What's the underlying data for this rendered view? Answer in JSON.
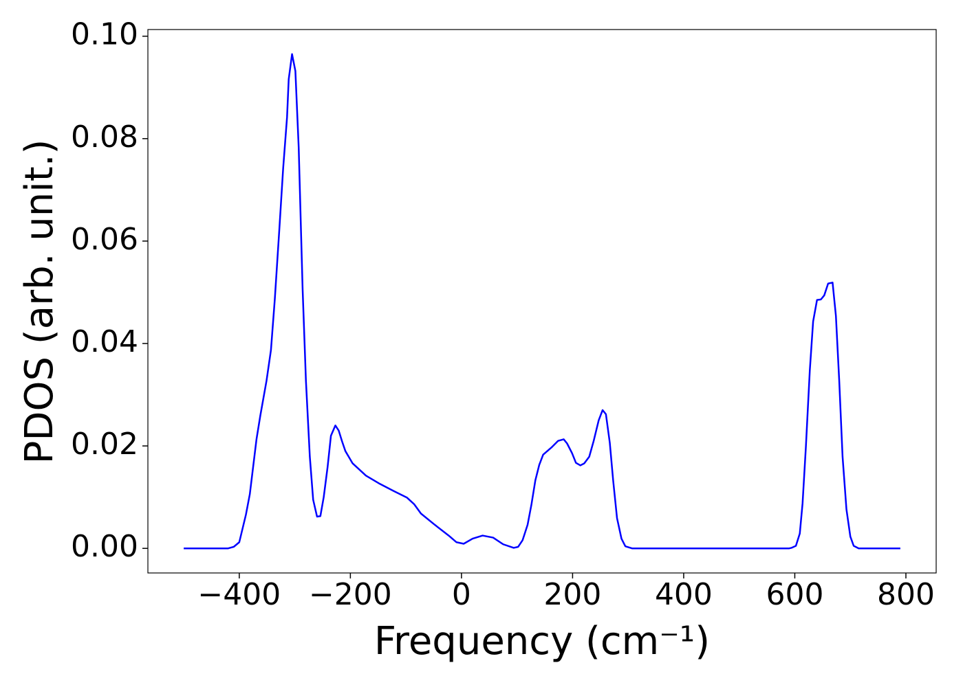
{
  "chart_data": {
    "type": "line",
    "xlabel": "Frequency (cm⁻¹)",
    "ylabel": "PDOS (arb. unit.)",
    "xlim": [
      -564.5,
      854.5
    ],
    "ylim": [
      -0.0048,
      0.1013
    ],
    "xticks": [
      {
        "value": -400,
        "label": "−400"
      },
      {
        "value": -200,
        "label": "−200"
      },
      0,
      200,
      400,
      600,
      800
    ],
    "yticks": [
      {
        "value": 0,
        "label": "0.00"
      },
      {
        "value": 0.02,
        "label": "0.02"
      },
      {
        "value": 0.04,
        "label": "0.04"
      },
      {
        "value": 0.06,
        "label": "0.06"
      },
      {
        "value": 0.08,
        "label": "0.08"
      },
      {
        "value": 0.1,
        "label": "0.10"
      }
    ],
    "series": [
      {
        "color": "#0000ff",
        "x": [
          -500,
          -420,
          -410,
          -400,
          -388,
          -381,
          -369,
          -362,
          -351,
          -343,
          -336,
          -328,
          -321,
          -314,
          -311,
          -305,
          -299,
          -293,
          -286,
          -280,
          -273,
          -267,
          -260,
          -254,
          -248,
          -241,
          -235,
          -227,
          -221,
          -215,
          -209,
          -196,
          -172,
          -147,
          -122,
          -98,
          -85,
          -73,
          -48,
          -23,
          -9,
          4,
          20,
          38,
          57,
          75,
          94,
          102,
          110,
          119,
          126,
          133,
          140,
          147,
          162,
          174,
          184,
          190,
          199,
          206,
          214,
          221,
          230,
          238,
          247,
          254,
          260,
          267,
          273,
          280,
          288,
          295,
          307,
          590,
          594,
          602,
          609,
          614,
          620,
          627,
          633,
          640,
          647,
          653,
          660,
          668,
          674,
          680,
          686,
          693,
          700,
          706,
          715,
          790
        ],
        "values": [
          0,
          0,
          0.0003,
          0.0012,
          0.0066,
          0.0106,
          0.0213,
          0.026,
          0.0327,
          0.0387,
          0.0487,
          0.0621,
          0.0742,
          0.0842,
          0.0916,
          0.0965,
          0.0932,
          0.0782,
          0.0507,
          0.0327,
          0.0179,
          0.0095,
          0.0062,
          0.0063,
          0.01,
          0.0159,
          0.022,
          0.024,
          0.023,
          0.0209,
          0.019,
          0.0166,
          0.0142,
          0.0126,
          0.0112,
          0.0099,
          0.0086,
          0.0068,
          0.0046,
          0.0025,
          0.0012,
          0.0009,
          0.0019,
          0.0025,
          0.0021,
          0.0008,
          0.0001,
          0.0003,
          0.0016,
          0.0046,
          0.0086,
          0.0133,
          0.0163,
          0.0183,
          0.0197,
          0.021,
          0.0213,
          0.0205,
          0.0186,
          0.0167,
          0.0162,
          0.0166,
          0.0179,
          0.021,
          0.025,
          0.027,
          0.0262,
          0.0206,
          0.0133,
          0.0059,
          0.0019,
          0.0004,
          0,
          0,
          0.0001,
          0.0005,
          0.0029,
          0.0088,
          0.0199,
          0.0347,
          0.0443,
          0.0485,
          0.0486,
          0.0494,
          0.0517,
          0.0519,
          0.0454,
          0.0327,
          0.0179,
          0.0076,
          0.0023,
          0.0005,
          0,
          0
        ]
      }
    ]
  }
}
